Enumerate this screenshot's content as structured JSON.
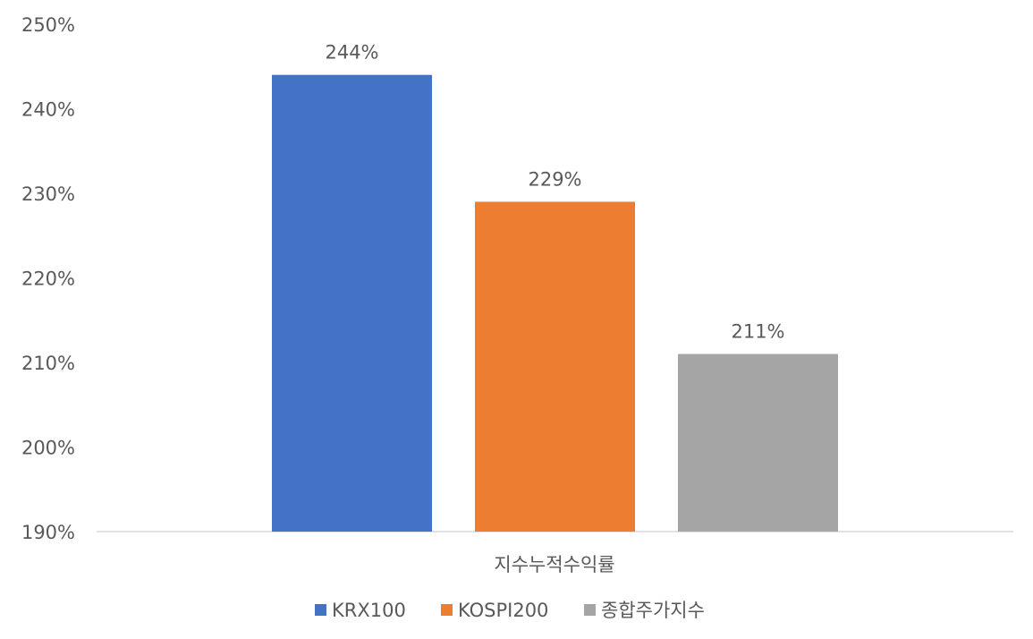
{
  "chart_data": {
    "type": "bar",
    "categories": [
      "지수누적수익률"
    ],
    "series": [
      {
        "name": "KRX100",
        "values": [
          244
        ],
        "color": "#4472C4",
        "label": "244%"
      },
      {
        "name": "KOSPI200",
        "values": [
          229
        ],
        "color": "#ED7D31",
        "label": "229%"
      },
      {
        "name": "종합주가지수",
        "values": [
          211
        ],
        "color": "#A5A5A5",
        "label": "211%"
      }
    ],
    "ylim": [
      190,
      250
    ],
    "yticks": [
      "190%",
      "200%",
      "210%",
      "220%",
      "230%",
      "240%",
      "250%"
    ],
    "grid": false,
    "legend": "bottom",
    "xlabel": "",
    "ylabel": "",
    "title": ""
  }
}
